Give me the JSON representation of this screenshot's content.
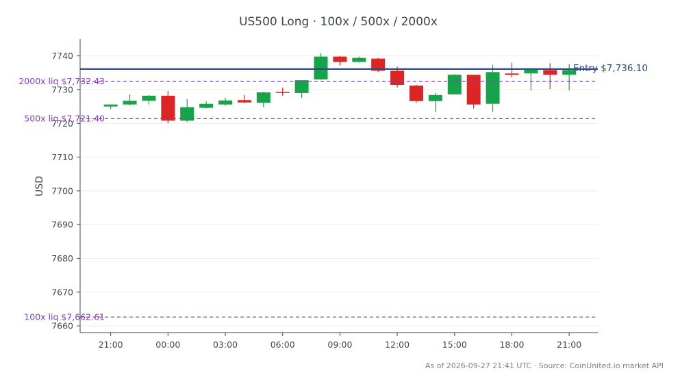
{
  "chart_data": {
    "type": "candlestick",
    "title": "US500 Long · 100x / 500x / 2000x",
    "ylabel": "USD",
    "xlabel": "",
    "ylim": [
      7658,
      7745
    ],
    "yticks": [
      7660,
      7670,
      7680,
      7690,
      7700,
      7710,
      7720,
      7730,
      7740
    ],
    "x_ticks": [
      {
        "hour": 20,
        "label": "21:00"
      },
      {
        "hour": 23,
        "label": "00:00"
      },
      {
        "hour": 26,
        "label": "03:00"
      },
      {
        "hour": 29,
        "label": "06:00"
      },
      {
        "hour": 32,
        "label": "09:00"
      },
      {
        "hour": 35,
        "label": "12:00"
      },
      {
        "hour": 38,
        "label": "15:00"
      },
      {
        "hour": 41,
        "label": "18:00"
      },
      {
        "hour": 44,
        "label": "21:00"
      }
    ],
    "x_range": [
      18.4,
      45.5
    ],
    "grid": true,
    "candles": [
      {
        "hour": 20,
        "open": 7725.0,
        "high": 7725.6,
        "low": 7724.2,
        "close": 7725.6
      },
      {
        "hour": 21,
        "open": 7725.6,
        "high": 7728.6,
        "low": 7725.3,
        "close": 7726.7
      },
      {
        "hour": 22,
        "open": 7726.7,
        "high": 7728.4,
        "low": 7725.6,
        "close": 7728.2
      },
      {
        "hour": 23,
        "open": 7728.2,
        "high": 7729.6,
        "low": 7720.0,
        "close": 7720.8
      },
      {
        "hour": 24,
        "open": 7720.8,
        "high": 7727.2,
        "low": 7720.4,
        "close": 7724.8
      },
      {
        "hour": 25,
        "open": 7724.6,
        "high": 7726.6,
        "low": 7724.4,
        "close": 7725.8
      },
      {
        "hour": 26,
        "open": 7725.6,
        "high": 7727.6,
        "low": 7725.2,
        "close": 7726.8
      },
      {
        "hour": 27,
        "open": 7726.9,
        "high": 7728.4,
        "low": 7726.0,
        "close": 7726.2
      },
      {
        "hour": 28,
        "open": 7726.1,
        "high": 7729.4,
        "low": 7724.8,
        "close": 7729.2
      },
      {
        "hour": 29,
        "open": 7729.3,
        "high": 7730.6,
        "low": 7728.2,
        "close": 7729.1
      },
      {
        "hour": 30,
        "open": 7729.0,
        "high": 7732.8,
        "low": 7727.6,
        "close": 7732.8
      },
      {
        "hour": 31,
        "open": 7733.0,
        "high": 7740.8,
        "low": 7733.0,
        "close": 7739.8
      },
      {
        "hour": 32,
        "open": 7739.8,
        "high": 7740.0,
        "low": 7737.2,
        "close": 7738.2
      },
      {
        "hour": 33,
        "open": 7738.2,
        "high": 7739.8,
        "low": 7738.0,
        "close": 7739.4
      },
      {
        "hour": 34,
        "open": 7739.2,
        "high": 7739.4,
        "low": 7735.2,
        "close": 7735.6
      },
      {
        "hour": 35,
        "open": 7735.6,
        "high": 7736.8,
        "low": 7730.6,
        "close": 7731.4
      },
      {
        "hour": 36,
        "open": 7731.2,
        "high": 7731.4,
        "low": 7726.2,
        "close": 7726.6
      },
      {
        "hour": 37,
        "open": 7726.6,
        "high": 7729.0,
        "low": 7723.4,
        "close": 7728.4
      },
      {
        "hour": 38,
        "open": 7728.6,
        "high": 7734.6,
        "low": 7728.6,
        "close": 7734.4
      },
      {
        "hour": 39,
        "open": 7734.4,
        "high": 7734.4,
        "low": 7724.4,
        "close": 7725.6
      },
      {
        "hour": 40,
        "open": 7725.8,
        "high": 7737.4,
        "low": 7723.4,
        "close": 7735.2
      },
      {
        "hour": 41,
        "open": 7734.8,
        "high": 7738.0,
        "low": 7733.6,
        "close": 7734.4
      },
      {
        "hour": 42,
        "open": 7734.8,
        "high": 7736.4,
        "low": 7729.8,
        "close": 7736.0
      },
      {
        "hour": 43,
        "open": 7735.8,
        "high": 7737.8,
        "low": 7730.2,
        "close": 7734.4
      },
      {
        "hour": 44,
        "open": 7734.4,
        "high": 7737.6,
        "low": 7729.8,
        "close": 7735.8
      }
    ],
    "reference_lines": [
      {
        "label": "Entry $7,736.10",
        "value": 7736.1,
        "style": "solid",
        "color": "#2d4a8a"
      },
      {
        "label": "2000x liq $7,732.43",
        "value": 7732.43,
        "style": "dashed",
        "color": "#8a3cc0"
      },
      {
        "label": "500x liq $7,721.40",
        "value": 7721.4,
        "style": "dashed",
        "color": "#8a3cc0"
      },
      {
        "label": "100x liq $7,662.61",
        "value": 7662.61,
        "style": "dashed",
        "color": "#8a3cc0"
      }
    ],
    "colors": {
      "up": "#16a34a",
      "down": "#dc2626",
      "grid": "#ececec",
      "axis": "#3d4752"
    },
    "footer": "As of 2026-09-27 21:41 UTC · Source: CoinUnited.io market API"
  }
}
